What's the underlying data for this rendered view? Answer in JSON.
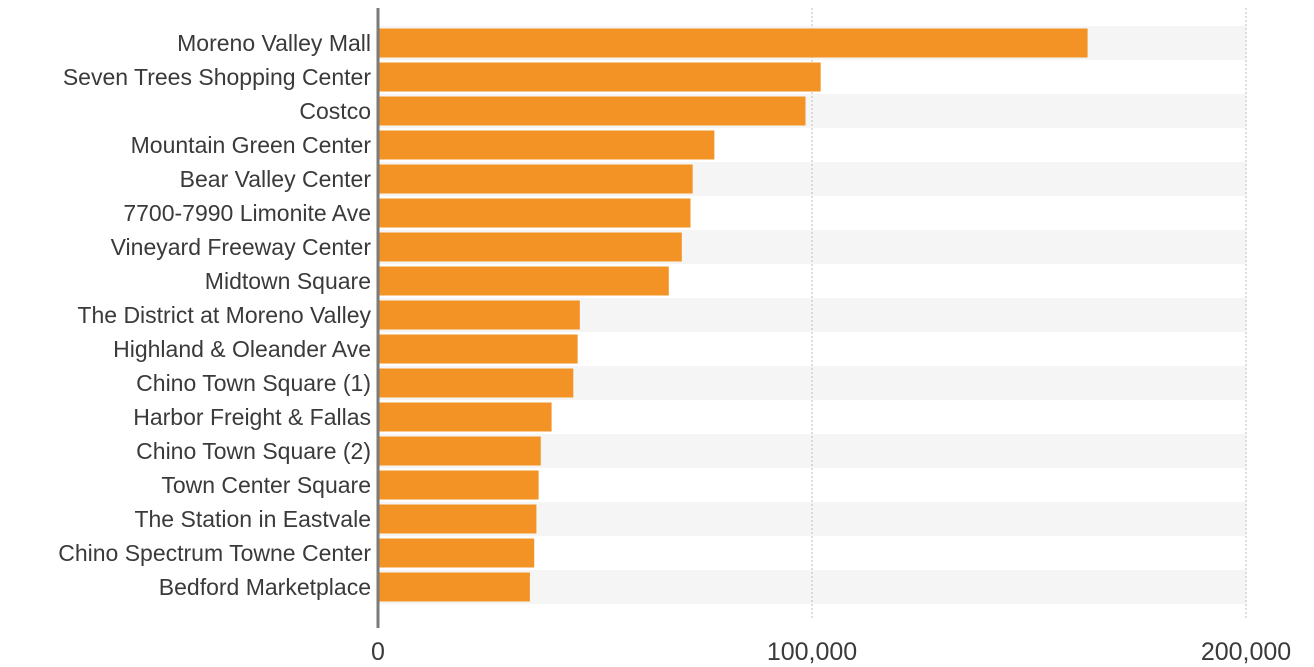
{
  "chart_data": {
    "type": "bar",
    "orientation": "horizontal",
    "categories": [
      "Moreno Valley Mall",
      "Seven Trees Shopping Center",
      "Costco",
      "Mountain Green Center",
      "Bear Valley Center",
      "7700-7990 Limonite Ave",
      "Vineyard Freeway Center",
      "Midtown Square",
      "The District at Moreno Valley",
      "Highland & Oleander Ave",
      "Chino Town Square (1)",
      "Harbor Freight & Fallas",
      "Chino Town Square (2)",
      "Town Center Square",
      "The Station in Eastvale",
      "Chino Spectrum Towne Center",
      "Bedford Marketplace"
    ],
    "values": [
      163500,
      102000,
      98500,
      77500,
      72500,
      72000,
      70000,
      67000,
      46500,
      46000,
      45000,
      40000,
      37500,
      37000,
      36500,
      36000,
      35000
    ],
    "xlim": [
      0,
      200000
    ],
    "xticks": [
      0,
      100000,
      200000
    ],
    "xtick_labels": [
      "0",
      "100,000",
      "200,000"
    ],
    "title": "",
    "xlabel": "",
    "ylabel": "",
    "grid": "vertical dotted",
    "legend": "none",
    "bar_color": "#F39325",
    "band_color": "#F5F5F5"
  }
}
